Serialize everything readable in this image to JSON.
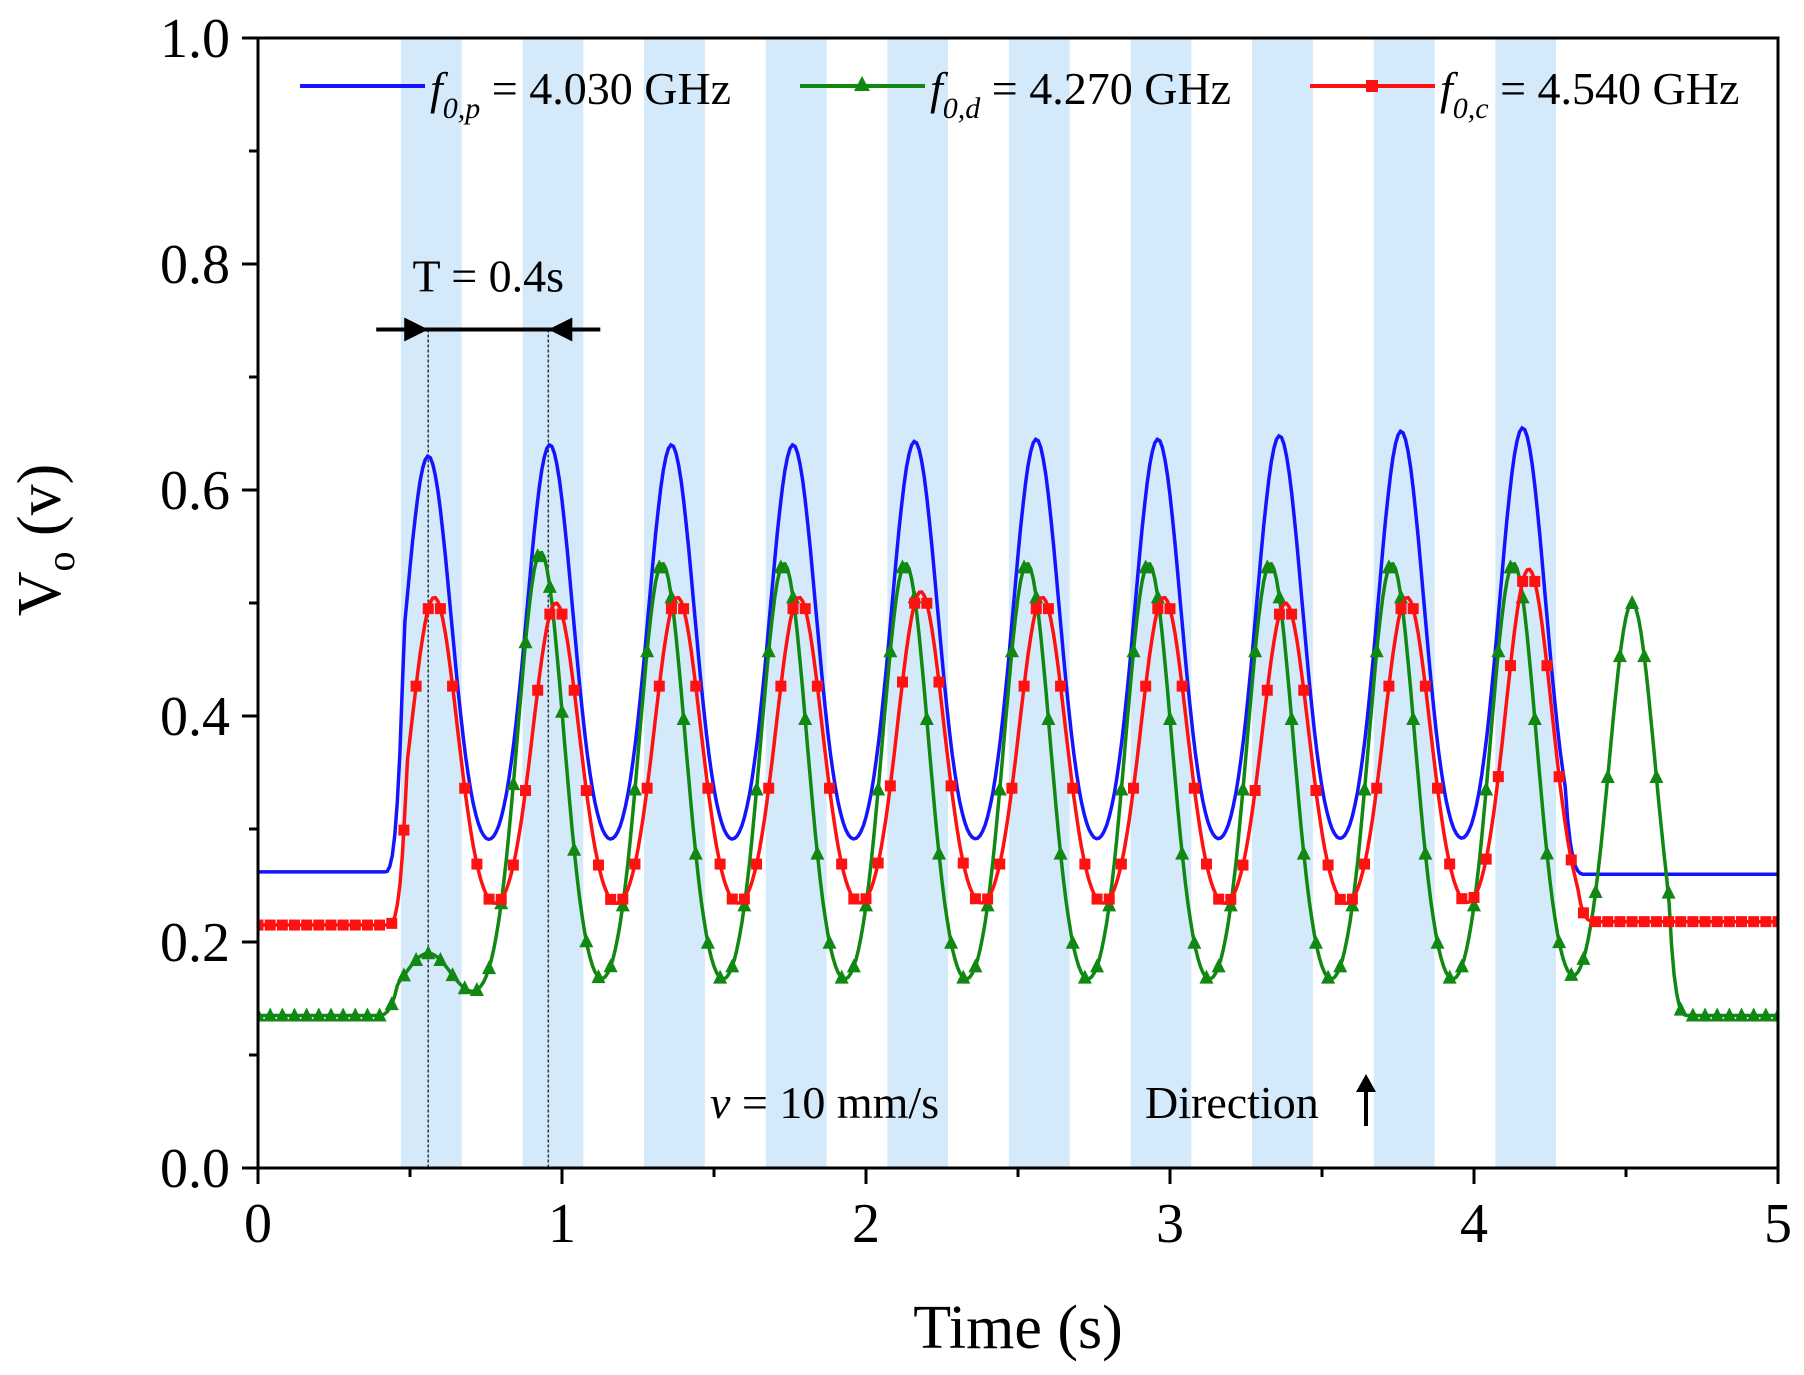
{
  "chart_data": {
    "type": "line",
    "title": "",
    "xlabel": "Time (s)",
    "ylabel_main": "V",
    "ylabel_sub": "o",
    "ylabel_unit": " (v)",
    "xlim": [
      0,
      5
    ],
    "ylim": [
      0,
      1.0
    ],
    "xticks": [
      "0",
      "1",
      "2",
      "3",
      "4",
      "5"
    ],
    "yticks": [
      "0.0",
      "0.2",
      "0.4",
      "0.6",
      "0.8",
      "1.0"
    ],
    "grid": false,
    "legend_position": "top",
    "bands": [
      {
        "start": 0.47,
        "end": 0.67
      },
      {
        "start": 0.87,
        "end": 1.07
      },
      {
        "start": 1.27,
        "end": 1.47
      },
      {
        "start": 1.67,
        "end": 1.87
      },
      {
        "start": 2.07,
        "end": 2.27
      },
      {
        "start": 2.47,
        "end": 2.67
      },
      {
        "start": 2.87,
        "end": 3.07
      },
      {
        "start": 3.27,
        "end": 3.47
      },
      {
        "start": 3.67,
        "end": 3.87
      },
      {
        "start": 4.07,
        "end": 4.27
      }
    ],
    "band_color": "#d4eafb",
    "series": [
      {
        "name": "f0,p = 4.030 GHz",
        "label_main": "f",
        "label_sub": "0,p",
        "label_value": " = 4.030 GHz",
        "color": "#1414ff",
        "marker": "none",
        "baseline": 0.262,
        "pre_value": 0.262,
        "post_value": 0.26,
        "low": 0.27,
        "peak_centers": [
          0.56,
          0.96,
          1.36,
          1.76,
          2.16,
          2.56,
          2.96,
          3.36,
          3.76,
          4.16
        ],
        "peaks": [
          0.63,
          0.64,
          0.64,
          0.64,
          0.643,
          0.645,
          0.645,
          0.648,
          0.652,
          0.655
        ],
        "start": 0.42,
        "end": 4.36
      },
      {
        "name": "f0,d = 4.270 GHz",
        "label_main": "f",
        "label_sub": "0,d",
        "label_value": " = 4.270 GHz",
        "color": "#118811",
        "marker": "triangle",
        "pre_value": 0.135,
        "post_value": 0.135,
        "low": 0.145,
        "peak_centers": [
          0.56,
          0.93,
          1.33,
          1.73,
          2.13,
          2.53,
          2.93,
          3.33,
          3.73,
          4.13,
          4.52
        ],
        "peaks": [
          0.19,
          0.545,
          0.535,
          0.535,
          0.535,
          0.535,
          0.535,
          0.535,
          0.535,
          0.535,
          0.5
        ],
        "start": 0.4,
        "end": 4.7
      },
      {
        "name": "f0,c = 4.540 GHz",
        "label_main": "f",
        "label_sub": "0,c",
        "label_value": " = 4.540 GHz",
        "color": "#ff1111",
        "marker": "square",
        "pre_value": 0.215,
        "post_value": 0.218,
        "low": 0.218,
        "peak_centers": [
          0.58,
          0.98,
          1.38,
          1.78,
          2.18,
          2.58,
          2.98,
          3.38,
          3.78,
          4.18
        ],
        "peaks": [
          0.505,
          0.5,
          0.505,
          0.505,
          0.51,
          0.505,
          0.505,
          0.5,
          0.505,
          0.53
        ],
        "start": 0.43,
        "end": 4.4
      }
    ],
    "annotations": {
      "period_label": "T = 0.4s",
      "period_start": 0.56,
      "period_end": 0.955,
      "period_arrow_y": 0.742,
      "velocity_symbol": "v",
      "velocity_text": " = 10 mm/s",
      "direction_text": "Direction"
    }
  }
}
